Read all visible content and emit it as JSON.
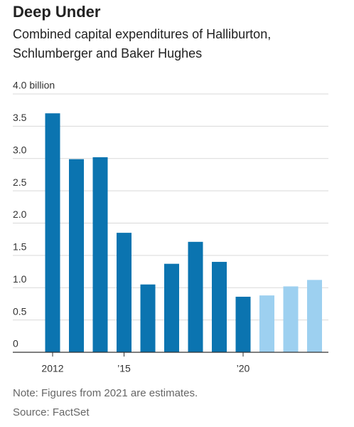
{
  "chart_data": {
    "type": "bar",
    "title": "Deep Under",
    "subtitle": [
      "Combined capital expenditures of Halliburton,",
      "Schlumberger and Baker Hughes"
    ],
    "categories": [
      "2012",
      null,
      null,
      "’15",
      null,
      null,
      null,
      null,
      "’20",
      null,
      null,
      null
    ],
    "values": [
      3.7,
      2.99,
      3.02,
      1.85,
      1.05,
      1.37,
      1.71,
      1.4,
      0.86,
      0.88,
      1.02,
      1.12
    ],
    "colors": [
      "#0b74b0",
      "#0b74b0",
      "#0b74b0",
      "#0b74b0",
      "#0b74b0",
      "#0b74b0",
      "#0b74b0",
      "#0b74b0",
      "#0b74b0",
      "#9dd0f0",
      "#9dd0f0",
      "#9dd0f0"
    ],
    "ylim": [
      0,
      4
    ],
    "yticks": [
      0,
      0.5,
      {
        "value": 1,
        "label": "1.0"
      },
      1.5,
      {
        "value": 2,
        "label": "2.0"
      },
      2.5,
      {
        "value": 3,
        "label": "3.0"
      },
      3.5,
      {
        "value": 4,
        "label": "4.0 billion"
      }
    ],
    "grid": true,
    "note": "Note: Figures from 2021 are estimates.",
    "source": "Source: FactSet"
  }
}
